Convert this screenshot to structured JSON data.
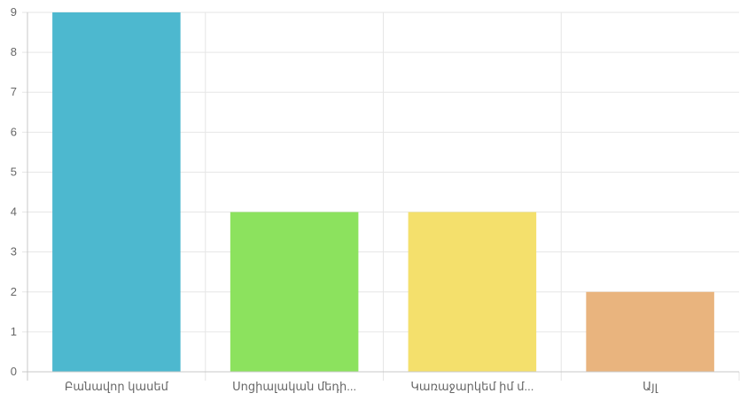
{
  "chart_data": {
    "type": "bar",
    "categories": [
      "Բանավոր կասեմ",
      "Սոցիալական մեդի...",
      "Կառաջարկեմ իմ մ...",
      "Այլ"
    ],
    "values": [
      9,
      4,
      4,
      2
    ],
    "colors": [
      "#4db8cf",
      "#8ce25e",
      "#f4e06c",
      "#e9b47e"
    ],
    "ylim": [
      0,
      9
    ],
    "yticks": [
      0,
      1,
      2,
      3,
      4,
      5,
      6,
      7,
      8,
      9
    ],
    "grid": true,
    "title": "",
    "xlabel": "",
    "ylabel": ""
  }
}
